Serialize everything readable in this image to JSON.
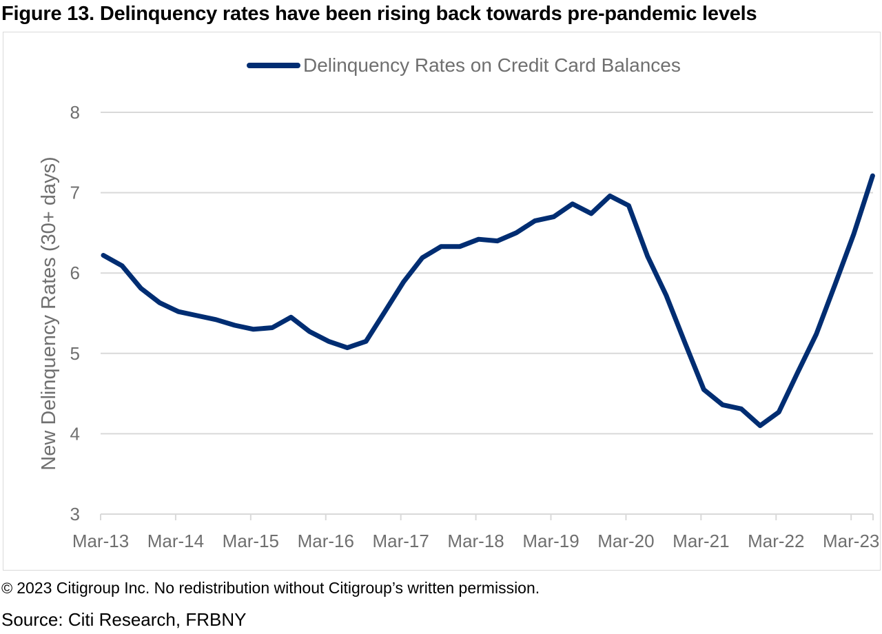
{
  "figure": {
    "title": "Figure 13. Delinquency rates have been rising back towards pre-pandemic levels",
    "copyright_symbol": "©",
    "copyright_text": "2023 Citigroup Inc. No redistribution without Citigroup’s written permission.",
    "source": "Source: Citi Research, FRBNY"
  },
  "chart_data": {
    "type": "line",
    "title": "",
    "xlabel": "",
    "ylabel": "New Delinquency Rates (30+ days)",
    "ylim": [
      3,
      8
    ],
    "yticks": [
      3,
      4,
      5,
      6,
      7,
      8
    ],
    "xtick_labels": [
      "Mar-13",
      "Mar-14",
      "Mar-15",
      "Mar-16",
      "Mar-17",
      "Mar-18",
      "Mar-19",
      "Mar-20",
      "Mar-21",
      "Mar-22",
      "Mar-23"
    ],
    "grid": "horizontal",
    "legend": "top-center",
    "series": [
      {
        "name": "Delinquency Rates on Credit Card Balances",
        "color": "#002d72",
        "x": [
          "Mar-13",
          "Jun-13",
          "Sep-13",
          "Dec-13",
          "Mar-14",
          "Jun-14",
          "Sep-14",
          "Dec-14",
          "Mar-15",
          "Jun-15",
          "Sep-15",
          "Dec-15",
          "Mar-16",
          "Jun-16",
          "Sep-16",
          "Dec-16",
          "Mar-17",
          "Jun-17",
          "Sep-17",
          "Dec-17",
          "Mar-18",
          "Jun-18",
          "Sep-18",
          "Dec-18",
          "Mar-19",
          "Jun-19",
          "Sep-19",
          "Dec-19",
          "Mar-20",
          "Jun-20",
          "Sep-20",
          "Dec-20",
          "Mar-21",
          "Jun-21",
          "Sep-21",
          "Dec-21",
          "Mar-22",
          "Jun-22",
          "Sep-22",
          "Dec-22",
          "Mar-23",
          "Jun-23"
        ],
        "values": [
          6.22,
          6.09,
          5.81,
          5.63,
          5.52,
          5.47,
          5.42,
          5.35,
          5.3,
          5.32,
          5.45,
          5.27,
          5.15,
          5.07,
          5.15,
          5.52,
          5.89,
          6.19,
          6.33,
          6.33,
          6.42,
          6.4,
          6.5,
          6.65,
          6.7,
          6.86,
          6.74,
          6.96,
          6.84,
          6.21,
          5.72,
          5.13,
          4.55,
          4.36,
          4.31,
          4.1,
          4.27,
          4.76,
          5.24,
          5.86,
          6.49,
          7.21
        ]
      }
    ]
  }
}
